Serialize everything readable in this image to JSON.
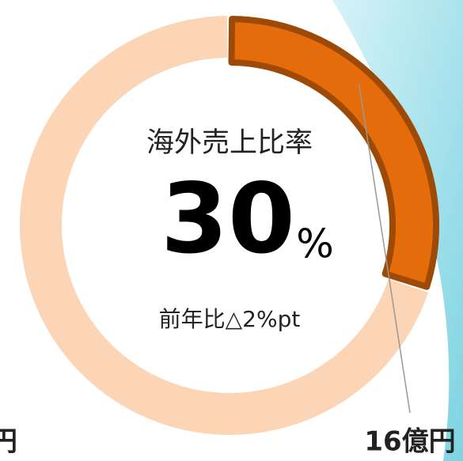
{
  "chart_data": {
    "type": "donut",
    "title": "海外売上比率",
    "unit": "%",
    "subtitle": "前年比△2%pt",
    "categories": [
      null,
      null
    ],
    "values": [
      30,
      70
    ],
    "colors": [
      "#e46c0a",
      "#fbd5b5"
    ],
    "value_labels": [
      "16億円",
      "億円"
    ]
  }
}
